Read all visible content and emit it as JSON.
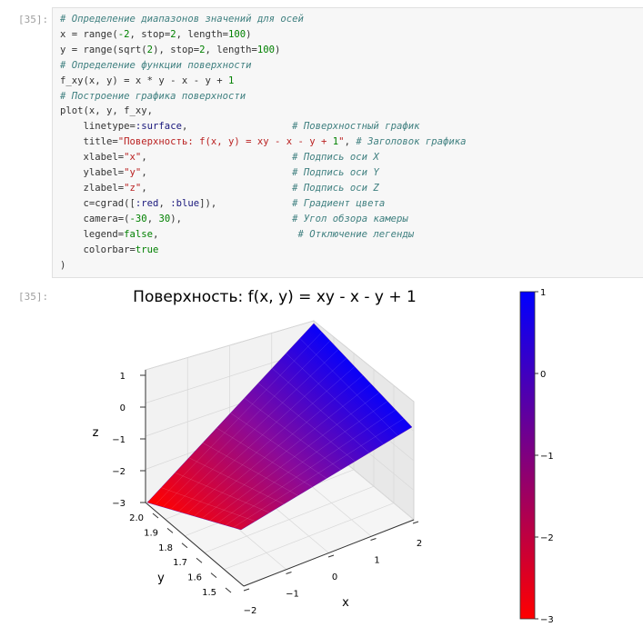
{
  "input_prompt": "[35]:",
  "output_prompt": "[35]:",
  "code_lines": [
    "# Определение диапазонов значений для осей",
    "x = range(-2, stop=2, length=100)",
    "y = range(sqrt(2), stop=2, length=100)",
    "# Определение функции поверхности",
    "f_xy(x, y) = x * y - x - y + 1",
    "# Построение графика поверхности",
    "plot(x, y, f_xy,",
    "    linetype=:surface,                  # Поверхностный график",
    "    title=\"Поверхность: f(x, y) = xy - x - y + 1\", # Заголовок графика",
    "    xlabel=\"x\",                         # Подпись оси X",
    "    ylabel=\"y\",                         # Подпись оси Y",
    "    zlabel=\"z\",                         # Подпись оси Z",
    "    c=cgrad([:red, :blue]),             # Градиент цвета",
    "    camera=(-30, 30),                   # Угол обзора камеры",
    "    legend=false,                        # Отключение легенды",
    "    colorbar=true",
    ")"
  ],
  "chart_data": {
    "type": "surface",
    "title": "Поверхность: f(x, y) = xy - x - y + 1",
    "xlabel": "x",
    "ylabel": "y",
    "zlabel": "z",
    "xlim": [
      -2,
      2
    ],
    "ylim": [
      1.414,
      2
    ],
    "zlim": [
      -3,
      1
    ],
    "x_ticks": [
      "−2",
      "−1",
      "0",
      "1",
      "2"
    ],
    "y_ticks": [
      "1.5",
      "1.6",
      "1.7",
      "1.8",
      "1.9",
      "2.0"
    ],
    "z_ticks": [
      "1",
      "0",
      "−1",
      "−2",
      "−3"
    ],
    "colorbar_ticks": [
      "1",
      "0",
      "−1",
      "−2",
      "−3"
    ],
    "colorbar_range": [
      -3,
      1
    ],
    "colormap": [
      "#ff0000",
      "#0000ff"
    ],
    "corners": [
      {
        "x": -2,
        "y": 2,
        "z": -3
      },
      {
        "x": -2,
        "y": 1.414,
        "z": -1.243
      },
      {
        "x": 2,
        "y": 1.414,
        "z": 0.414
      },
      {
        "x": 2,
        "y": 2,
        "z": 1
      }
    ],
    "camera": [
      -30,
      30
    ],
    "legend": false,
    "colorbar": true
  }
}
